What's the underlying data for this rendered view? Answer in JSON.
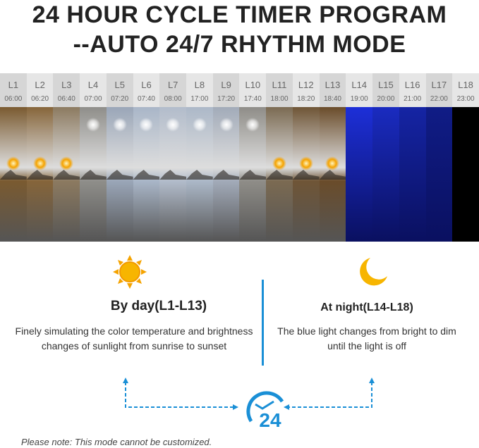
{
  "title_line1": "24 HOUR CYCLE TIMER PROGRAM",
  "title_line2": "--AUTO 24/7 RHYTHM MODE",
  "accent_color": "#1a8fd6",
  "steps": [
    {
      "label": "L1",
      "time": "06:00",
      "phase": "sunrise",
      "color": "#7a5a30"
    },
    {
      "label": "L2",
      "time": "06:20",
      "phase": "sunrise",
      "color": "#86653a"
    },
    {
      "label": "L3",
      "time": "06:40",
      "phase": "sunrise",
      "color": "#8c7a60"
    },
    {
      "label": "L4",
      "time": "07:00",
      "phase": "day",
      "color": "#8f8e8a"
    },
    {
      "label": "L5",
      "time": "07:20",
      "phase": "day",
      "color": "#9aa6b8"
    },
    {
      "label": "L6",
      "time": "07:40",
      "phase": "day",
      "color": "#a9b6c8"
    },
    {
      "label": "L7",
      "time": "08:00",
      "phase": "day",
      "color": "#b2bccb"
    },
    {
      "label": "L8",
      "time": "17:00",
      "phase": "day",
      "color": "#acb8c8"
    },
    {
      "label": "L9",
      "time": "17:20",
      "phase": "day",
      "color": "#a2abb9"
    },
    {
      "label": "L10",
      "time": "17:40",
      "phase": "day",
      "color": "#8f8d88"
    },
    {
      "label": "L11",
      "time": "18:00",
      "phase": "sunset",
      "color": "#7b6a52"
    },
    {
      "label": "L12",
      "time": "18:20",
      "phase": "sunset",
      "color": "#6f5536"
    },
    {
      "label": "L13",
      "time": "18:40",
      "phase": "sunset",
      "color": "#6a4c2a"
    },
    {
      "label": "L14",
      "time": "19:00",
      "phase": "night",
      "color": "#1d2fd8"
    },
    {
      "label": "L15",
      "time": "20:00",
      "phase": "night",
      "color": "#1a2bc0"
    },
    {
      "label": "L16",
      "time": "21:00",
      "phase": "night",
      "color": "#1524a4"
    },
    {
      "label": "L17",
      "time": "22:00",
      "phase": "night",
      "color": "#101c86"
    },
    {
      "label": "L18",
      "time": "23:00",
      "phase": "off",
      "color": "#000000"
    }
  ],
  "day": {
    "heading": "By day(L1-L13)",
    "text": "Finely simulating the color temperature and brightness changes of sunlight from sunrise to sunset"
  },
  "night": {
    "heading": "At night(L14-L18)",
    "text": "The blue light changes from bright to dim until the light is off"
  },
  "clock_label": "24",
  "note": "Please note: This mode cannot be customized."
}
